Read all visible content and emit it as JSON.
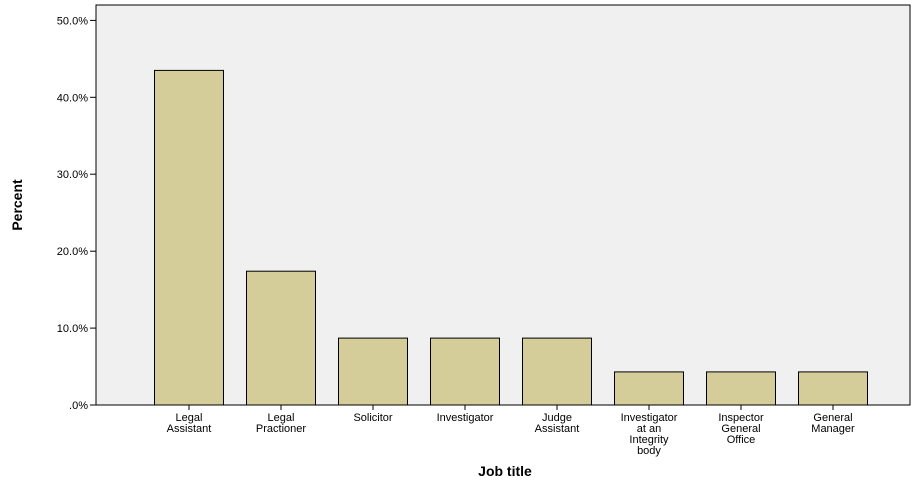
{
  "chart_data": {
    "type": "bar",
    "xlabel": "Job title",
    "ylabel": "Percent",
    "categories": [
      [
        "Legal",
        "Assistant"
      ],
      [
        "Legal",
        "Practioner"
      ],
      [
        "Solicitor"
      ],
      [
        "Investigator"
      ],
      [
        "Judge",
        "Assistant"
      ],
      [
        "Investigator",
        "at an",
        "Integrity",
        "body"
      ],
      [
        "Inspector",
        "General",
        "Office"
      ],
      [
        "General",
        "Manager"
      ]
    ],
    "values": [
      43.5,
      17.4,
      8.7,
      8.7,
      8.7,
      4.3,
      4.3,
      4.3
    ],
    "ylim": [
      0,
      52
    ],
    "yticks": [
      {
        "value": 0,
        "label": ".0%"
      },
      {
        "value": 10,
        "label": "10.0%"
      },
      {
        "value": 20,
        "label": "20.0%"
      },
      {
        "value": 30,
        "label": "30.0%"
      },
      {
        "value": 40,
        "label": "40.0%"
      },
      {
        "value": 50,
        "label": "50.0%"
      }
    ],
    "grid": false,
    "colors": {
      "bar_fill": "#d4cc99",
      "bar_stroke": "#000000",
      "plot_background": "#f0f0f0",
      "axis": "#000000"
    }
  }
}
